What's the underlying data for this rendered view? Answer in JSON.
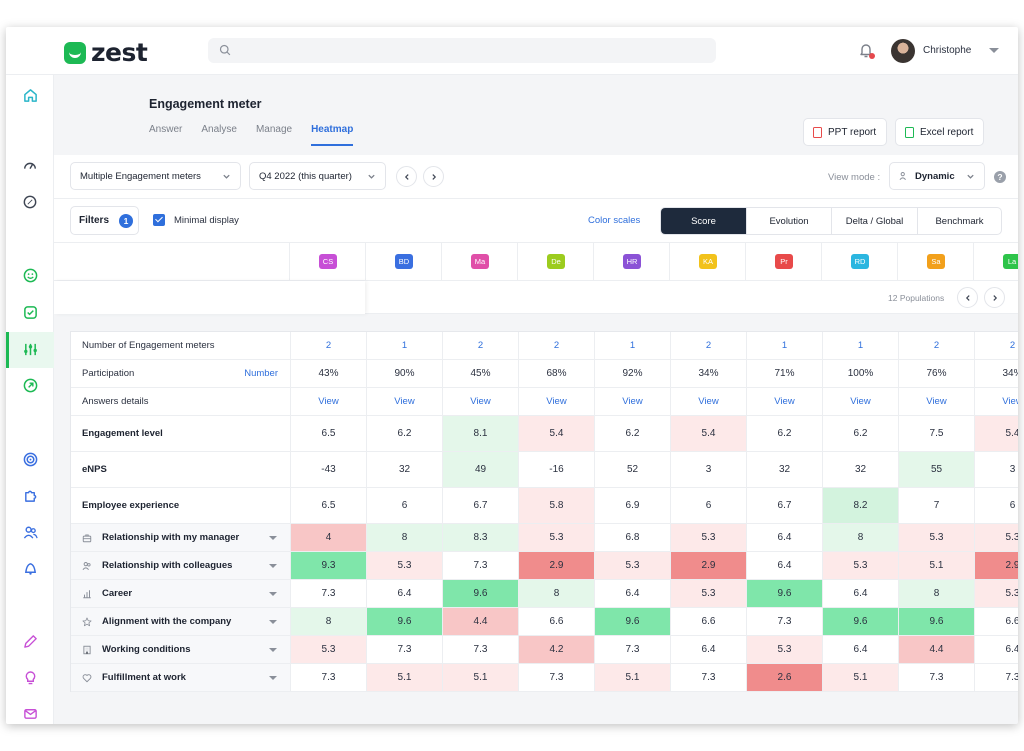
{
  "app": {
    "logo_text": "zest"
  },
  "user": {
    "name": "Christophe"
  },
  "search": {
    "placeholder": ""
  },
  "sidebar": {
    "items": [
      "home-icon",
      "gauge-icon",
      "compass-icon",
      "smiley-icon",
      "check-square-icon",
      "sliders-icon",
      "arrow-circle-icon",
      "target-icon",
      "puzzle-icon",
      "users-icon",
      "bell-group-icon",
      "edit-icon",
      "lightbulb-icon",
      "mail-icon"
    ]
  },
  "page": {
    "title": "Engagement meter",
    "tabs": [
      {
        "label": "Answer"
      },
      {
        "label": "Analyse"
      },
      {
        "label": "Manage"
      },
      {
        "label": "Heatmap",
        "active": true
      }
    ],
    "ppt_label": "PPT report",
    "excel_label": "Excel report"
  },
  "toolbar": {
    "meter_select": "Multiple Engagement meters",
    "period_select": "Q4 2022 (this quarter)",
    "view_mode_label": "View mode :",
    "view_mode_value": "Dynamic",
    "help": "?"
  },
  "filters": {
    "label": "Filters",
    "count": "1",
    "minimal_display": "Minimal display",
    "color_scales": "Color scales",
    "views": [
      "Score",
      "Evolution",
      "Delta / Global",
      "Benchmark"
    ],
    "active_view": "Score"
  },
  "populations": {
    "count_label": "12 Populations",
    "columns": [
      {
        "abbr": "CS",
        "color": "#c74fd6"
      },
      {
        "abbr": "BD",
        "color": "#3a6fe0"
      },
      {
        "abbr": "Ma",
        "color": "#e04fa8"
      },
      {
        "abbr": "De",
        "color": "#9ccc1e"
      },
      {
        "abbr": "HR",
        "color": "#8b52d6"
      },
      {
        "abbr": "KA",
        "color": "#f2c21b"
      },
      {
        "abbr": "Pr",
        "color": "#e84a4a"
      },
      {
        "abbr": "RD",
        "color": "#2bb6e0"
      },
      {
        "abbr": "Sa",
        "color": "#f2a01b"
      },
      {
        "abbr": "La",
        "color": "#2ec44a"
      }
    ]
  },
  "table": {
    "number_link": "Number",
    "rows": [
      {
        "label": "Number of Engagement meters",
        "kind": "link",
        "values": [
          "2",
          "1",
          "2",
          "2",
          "1",
          "2",
          "1",
          "1",
          "2",
          "2"
        ]
      },
      {
        "label": "Participation",
        "kind": "plain",
        "values": [
          "43%",
          "90%",
          "45%",
          "68%",
          "92%",
          "34%",
          "71%",
          "100%",
          "76%",
          "34%"
        ]
      },
      {
        "label": "Answers details",
        "kind": "link",
        "values": [
          "View",
          "View",
          "View",
          "View",
          "View",
          "View",
          "View",
          "View",
          "View",
          "View"
        ]
      },
      {
        "label": "Engagement level",
        "kind": "score",
        "values": [
          "6.5",
          "6.2",
          "8.1",
          "5.4",
          "6.2",
          "5.4",
          "6.2",
          "6.2",
          "7.5",
          "5.4"
        ],
        "colors": [
          "#ffffff",
          "#ffffff",
          "#e4f7ea",
          "#fde9e9",
          "#ffffff",
          "#fde9e9",
          "#ffffff",
          "#ffffff",
          "#ffffff",
          "#fde9e9"
        ]
      },
      {
        "label": "eNPS",
        "kind": "score",
        "values": [
          "-43",
          "32",
          "49",
          "-16",
          "52",
          "3",
          "32",
          "32",
          "55",
          "3"
        ],
        "colors": [
          "#ffffff",
          "#ffffff",
          "#e4f7ea",
          "#ffffff",
          "#ffffff",
          "#ffffff",
          "#ffffff",
          "#ffffff",
          "#e4f7ea",
          "#ffffff"
        ]
      },
      {
        "label": "Employee experience",
        "kind": "score",
        "values": [
          "6.5",
          "6",
          "6.7",
          "5.8",
          "6.9",
          "6",
          "6.7",
          "8.2",
          "7",
          "6"
        ],
        "colors": [
          "#ffffff",
          "#ffffff",
          "#ffffff",
          "#fde9e9",
          "#ffffff",
          "#ffffff",
          "#ffffff",
          "#d3f3de",
          "#ffffff",
          "#ffffff"
        ]
      },
      {
        "label": "Relationship with my manager",
        "kind": "sub",
        "icon": "briefcase-icon",
        "values": [
          "4",
          "8",
          "8.3",
          "5.3",
          "6.8",
          "5.3",
          "6.4",
          "8",
          "5.3",
          "5.3"
        ],
        "colors": [
          "#f8c6c6",
          "#e4f7ea",
          "#e4f7ea",
          "#fde9e9",
          "#ffffff",
          "#fde9e9",
          "#ffffff",
          "#e4f7ea",
          "#fde9e9",
          "#fde9e9"
        ]
      },
      {
        "label": "Relationship with colleagues",
        "kind": "sub",
        "icon": "users-icon",
        "values": [
          "9.3",
          "5.3",
          "7.3",
          "2.9",
          "5.3",
          "2.9",
          "6.4",
          "5.3",
          "5.1",
          "2.9"
        ],
        "colors": [
          "#7fe6aa",
          "#fde9e9",
          "#ffffff",
          "#f08c8c",
          "#fde9e9",
          "#f08c8c",
          "#ffffff",
          "#fde9e9",
          "#fde9e9",
          "#f08c8c"
        ]
      },
      {
        "label": "Career",
        "kind": "sub",
        "icon": "chart-icon",
        "values": [
          "7.3",
          "6.4",
          "9.6",
          "8",
          "6.4",
          "5.3",
          "9.6",
          "6.4",
          "8",
          "5.3"
        ],
        "colors": [
          "#ffffff",
          "#ffffff",
          "#7fe6aa",
          "#e4f7ea",
          "#ffffff",
          "#fde9e9",
          "#7fe6aa",
          "#ffffff",
          "#e4f7ea",
          "#fde9e9"
        ]
      },
      {
        "label": "Alignment with the company",
        "kind": "sub",
        "icon": "star-icon",
        "values": [
          "8",
          "9.6",
          "4.4",
          "6.6",
          "9.6",
          "6.6",
          "7.3",
          "9.6",
          "9.6",
          "6.6"
        ],
        "colors": [
          "#e4f7ea",
          "#7fe6aa",
          "#f8c6c6",
          "#ffffff",
          "#7fe6aa",
          "#ffffff",
          "#ffffff",
          "#7fe6aa",
          "#7fe6aa",
          "#ffffff"
        ]
      },
      {
        "label": "Working conditions",
        "kind": "sub",
        "icon": "building-icon",
        "values": [
          "5.3",
          "7.3",
          "7.3",
          "4.2",
          "7.3",
          "6.4",
          "5.3",
          "6.4",
          "4.4",
          "6.4"
        ],
        "colors": [
          "#fde9e9",
          "#ffffff",
          "#ffffff",
          "#f8c6c6",
          "#ffffff",
          "#ffffff",
          "#fde9e9",
          "#ffffff",
          "#f8c6c6",
          "#ffffff"
        ]
      },
      {
        "label": "Fulfillment at work",
        "kind": "sub",
        "icon": "heart-icon",
        "values": [
          "7.3",
          "5.1",
          "5.1",
          "7.3",
          "5.1",
          "7.3",
          "2.6",
          "5.1",
          "7.3",
          "7.3"
        ],
        "colors": [
          "#ffffff",
          "#fde9e9",
          "#fde9e9",
          "#ffffff",
          "#fde9e9",
          "#ffffff",
          "#f08c8c",
          "#fde9e9",
          "#ffffff",
          "#ffffff"
        ]
      }
    ]
  }
}
